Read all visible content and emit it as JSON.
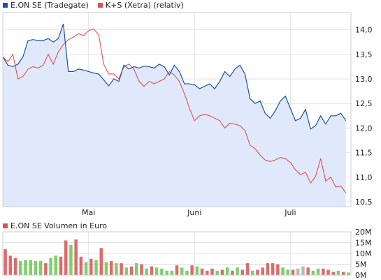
{
  "colors": {
    "background": "#ffffff",
    "plot_bg": "#ffffff",
    "grid": "#dfe3ea",
    "eon_line": "#1f4fa0",
    "eon_fill": "#dfe9fb",
    "ks_line": "#e05050",
    "legend_eon": "#1f4fa0",
    "legend_ks": "#e05050",
    "legend_vol": "#e05050",
    "vol_up": "#7ecf6a",
    "vol_down": "#dd6a6a",
    "vol_neutral": "#b8b8b8",
    "axis_text": "#222222"
  },
  "legend": {
    "eon": "E.ON SE (Tradegate)",
    "ks": "K+S (Xetra) (relativ)",
    "volume": "E.ON SE Volumen in Euro"
  },
  "chart_data": [
    {
      "type": "line",
      "x_labels": [
        "Mai",
        "Juni",
        "Juli"
      ],
      "x_label_positions": [
        17,
        38,
        57
      ],
      "xlim": [
        0,
        69
      ],
      "ylim": [
        10.4,
        14.35
      ],
      "y_ticks": [
        "14,0",
        "13,5",
        "13,0",
        "12,5",
        "12,0",
        "11,5",
        "11,0",
        "10,5"
      ],
      "y_tick_values": [
        14.0,
        13.5,
        13.0,
        12.5,
        12.0,
        11.5,
        11.0,
        10.5
      ],
      "grid": true,
      "series": [
        {
          "name": "E.ON SE (Tradegate)",
          "area": true,
          "values": [
            13.45,
            13.28,
            13.25,
            13.3,
            13.45,
            13.78,
            13.8,
            13.78,
            13.78,
            13.82,
            13.75,
            13.82,
            14.12,
            13.15,
            13.15,
            13.2,
            13.18,
            13.15,
            13.12,
            13.1,
            12.98,
            12.86,
            13.0,
            12.95,
            13.28,
            13.2,
            13.25,
            13.22,
            13.26,
            13.25,
            13.22,
            13.3,
            13.25,
            13.08,
            13.28,
            13.15,
            12.9,
            12.9,
            12.88,
            12.8,
            12.85,
            12.9,
            12.8,
            12.95,
            13.15,
            13.05,
            13.2,
            13.28,
            13.1,
            12.6,
            12.5,
            12.55,
            12.3,
            12.2,
            12.35,
            12.55,
            12.65,
            12.4,
            12.15,
            12.2,
            12.38,
            11.98,
            12.05,
            12.25,
            12.08,
            12.25,
            12.25,
            12.3,
            12.15
          ]
        },
        {
          "name": "K+S (Xetra) (relativ)",
          "area": false,
          "values": [
            13.45,
            13.35,
            13.5,
            13.0,
            13.05,
            13.2,
            13.25,
            13.22,
            13.28,
            13.5,
            13.3,
            13.55,
            13.7,
            13.8,
            13.85,
            13.92,
            13.88,
            13.98,
            14.02,
            13.9,
            13.3,
            13.1,
            13.1,
            13.0,
            13.25,
            13.3,
            13.2,
            12.95,
            12.85,
            12.95,
            12.9,
            12.95,
            13.0,
            13.15,
            13.08,
            12.95,
            12.7,
            12.4,
            12.15,
            12.25,
            12.28,
            12.25,
            12.2,
            12.15,
            12.0,
            12.1,
            12.08,
            12.05,
            11.95,
            11.65,
            11.58,
            11.45,
            11.35,
            11.32,
            11.35,
            11.4,
            11.38,
            11.3,
            11.15,
            11.05,
            11.1,
            10.88,
            11.02,
            11.38,
            10.92,
            11.0,
            10.8,
            10.82,
            10.68
          ]
        }
      ]
    },
    {
      "type": "bar",
      "title": "E.ON SE Volumen in Euro",
      "ylim": [
        0,
        20
      ],
      "y_ticks": [
        "20M",
        "15M",
        "10M",
        "5M",
        "0M"
      ],
      "y_tick_values": [
        20,
        15,
        10,
        5,
        0
      ],
      "grid": true,
      "series": [
        {
          "name": "E.ON SE Volumen in Euro",
          "unit": "M",
          "values": [
            12,
            9,
            8,
            6.5,
            7,
            7,
            6.5,
            6.5,
            5.5,
            8,
            9,
            8.5,
            16,
            14,
            16.5,
            8.5,
            6,
            7.5,
            7,
            12.5,
            6,
            6.5,
            5.5,
            5.5,
            3.5,
            4,
            5.5,
            5,
            3,
            4,
            3.5,
            3,
            2,
            2,
            4.5,
            3.5,
            2,
            4.5,
            4,
            3,
            2,
            3,
            2,
            2.5,
            3.5,
            2,
            3.5,
            2.5,
            5.5,
            2,
            2.5,
            3.5,
            5.5,
            5.5,
            5,
            3.5,
            2.5,
            2.5,
            3,
            4,
            3.5,
            2,
            3,
            3,
            2.5,
            1.5,
            2,
            1.5,
            1.2
          ],
          "directions": [
            "down",
            "down",
            "down",
            "up",
            "up",
            "up",
            "up",
            "up",
            "down",
            "up",
            "up",
            "down",
            "down",
            "up",
            "down",
            "down",
            "up",
            "down",
            "up",
            "down",
            "up",
            "down",
            "up",
            "down",
            "up",
            "down",
            "up",
            "down",
            "up",
            "down",
            "up",
            "up",
            "up",
            "up",
            "down",
            "up",
            "up",
            "down",
            "up",
            "down",
            "down",
            "down",
            "up",
            "down",
            "up",
            "down",
            "up",
            "down",
            "down",
            "up",
            "down",
            "down",
            "down",
            "down",
            "down",
            "up",
            "up",
            "down",
            "neutral",
            "neutral",
            "down",
            "up",
            "up",
            "down",
            "down",
            "down",
            "up",
            "down",
            "up"
          ]
        }
      ]
    }
  ]
}
